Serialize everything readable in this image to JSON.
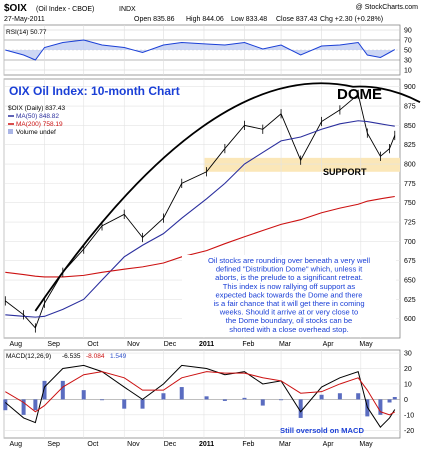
{
  "header": {
    "symbol": "$OIX",
    "name": "(Oil Index - CBOE)",
    "exchange": "INDX",
    "watermark": "@ StockCharts.com",
    "date": "27-May-2011",
    "open": "Open 835.86",
    "high": "High 844.06",
    "low": "Low 833.48",
    "close": "Close 837.43",
    "chg": "Chg +2.30 (+0.28%)"
  },
  "rsi_panel": {
    "label": "RSI(14) 50.77",
    "levels": [
      "90",
      "70",
      "50",
      "30",
      "10"
    ]
  },
  "price_panel": {
    "title": "OIX Oil Index: 10-month Chart",
    "dome_label": "DOME",
    "support_label": "SUPPORT",
    "legend": {
      "daily": "$OIX (Daily) 837.43",
      "ma50": "MA(50) 848.82",
      "ma200": "MA(200) 758.19",
      "volume": "Volume undef"
    },
    "y_ticks": [
      "900",
      "875",
      "850",
      "825",
      "800",
      "775",
      "750",
      "725",
      "700",
      "675",
      "650",
      "625",
      "600"
    ],
    "note_lines": [
      "Oil stocks are rounding over beneath a very well",
      "defined \"Distribution Dome\" which, unless it",
      "aborts, is the prelude to a significant retreat.",
      "This index is now rallying off support as",
      "expected back towards the Dome and there",
      "is a fair chance that it will get there in coming",
      "weeks. Should it arrive at or very close to",
      "the Dome boundary, oil stocks can be",
      "shorted with a close overhead stop."
    ]
  },
  "macd_panel": {
    "legend": {
      "name": "MACD(12,26,9)",
      "macd": "-6.535",
      "signal": "-8.084",
      "hist": "1.549"
    },
    "y_ticks": [
      "30",
      "20",
      "10",
      "0",
      "-10",
      "-20"
    ],
    "note": "Still oversold on MACD"
  },
  "x_axis": {
    "labels": [
      "Aug",
      "Sep",
      "Oct",
      "Nov",
      "Dec",
      "2011",
      "Feb",
      "Mar",
      "Apr",
      "May"
    ]
  },
  "colors": {
    "price": "#000000",
    "ma50": "#2b2f9e",
    "ma200": "#cc1111",
    "rsi_line": "#1a3fd6",
    "rsi_fill": "#b8c6ef",
    "macd": "#000000",
    "signal": "#cc1111",
    "hist": "#5a6cc0",
    "support_band": "#fbe7b8",
    "note_bg": "#ffffff"
  },
  "chart_data": {
    "type": "line",
    "x": [
      "2010-08-02",
      "2010-08-16",
      "2010-08-25",
      "2010-09-01",
      "2010-09-15",
      "2010-10-01",
      "2010-10-15",
      "2010-11-01",
      "2010-11-15",
      "2010-12-01",
      "2010-12-15",
      "2011-01-03",
      "2011-01-17",
      "2011-02-01",
      "2011-02-15",
      "2011-03-01",
      "2011-03-16",
      "2011-04-01",
      "2011-04-15",
      "2011-04-29",
      "2011-05-06",
      "2011-05-16",
      "2011-05-23",
      "2011-05-27"
    ],
    "series": [
      {
        "name": "$OIX (Daily) 837.43",
        "values": [
          623,
          605,
          588,
          620,
          660,
          690,
          720,
          735,
          705,
          730,
          775,
          790,
          820,
          850,
          845,
          865,
          805,
          855,
          870,
          890,
          840,
          810,
          820,
          837
        ]
      },
      {
        "name": "MA(50) 848.82",
        "values": [
          605,
          603,
          602,
          603,
          612,
          625,
          650,
          680,
          695,
          710,
          730,
          755,
          775,
          800,
          815,
          830,
          835,
          845,
          852,
          856,
          855,
          852,
          850,
          849
        ]
      },
      {
        "name": "MA(200) 758.19",
        "values": [
          660,
          657,
          655,
          654,
          654,
          656,
          660,
          664,
          667,
          672,
          680,
          688,
          697,
          706,
          714,
          722,
          728,
          737,
          743,
          748,
          752,
          755,
          757,
          758
        ]
      }
    ],
    "ylim": [
      575,
      910
    ],
    "y_ticks": [
      600,
      625,
      650,
      675,
      700,
      725,
      750,
      775,
      800,
      825,
      850,
      875,
      900
    ],
    "support_band": [
      790,
      808
    ],
    "rsi": {
      "values": [
        50,
        40,
        30,
        55,
        65,
        70,
        60,
        55,
        45,
        60,
        65,
        62,
        60,
        65,
        52,
        60,
        40,
        58,
        60,
        65,
        40,
        35,
        45,
        50.77
      ],
      "levels": [
        90,
        70,
        50,
        30,
        10
      ]
    },
    "macd": {
      "macd": [
        -2,
        -12,
        -15,
        8,
        20,
        22,
        18,
        8,
        0,
        10,
        22,
        20,
        16,
        18,
        10,
        12,
        -8,
        8,
        14,
        18,
        -5,
        -18,
        -12,
        -6.535
      ],
      "signal": [
        5,
        -2,
        -8,
        -4,
        8,
        16,
        18,
        14,
        6,
        6,
        14,
        18,
        17,
        17,
        14,
        12,
        4,
        5,
        10,
        14,
        6,
        -8,
        -10,
        -8.084
      ],
      "ylim": [
        -25,
        32
      ]
    }
  }
}
